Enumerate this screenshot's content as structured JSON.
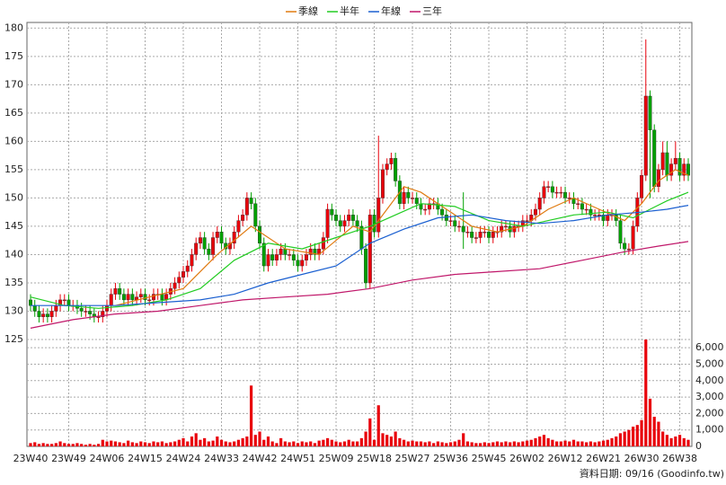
{
  "chart_data": {
    "type": "candlestick",
    "categories": [
      "23W40",
      null,
      null,
      null,
      null,
      null,
      null,
      null,
      null,
      "23W49",
      null,
      null,
      null,
      null,
      null,
      null,
      null,
      null,
      "24W06",
      null,
      null,
      null,
      null,
      null,
      null,
      null,
      null,
      "24W15",
      null,
      null,
      null,
      null,
      null,
      null,
      null,
      null,
      "24W24",
      null,
      null,
      null,
      null,
      null,
      null,
      null,
      null,
      "24W33",
      null,
      null,
      null,
      null,
      null,
      null,
      null,
      null,
      "24W42",
      null,
      null,
      null,
      null,
      null,
      null,
      null,
      null,
      "24W51",
      null,
      null,
      null,
      null,
      null,
      null,
      null,
      null,
      "25W09",
      null,
      null,
      null,
      null,
      null,
      null,
      null,
      null,
      "25W18",
      null,
      null,
      null,
      null,
      null,
      null,
      null,
      null,
      "25W27",
      null,
      null,
      null,
      null,
      null,
      null,
      null,
      null,
      "25W36",
      null,
      null,
      null,
      null,
      null,
      null,
      null,
      null,
      "25W45",
      null,
      null,
      null,
      null,
      null,
      null,
      null,
      null,
      "26W02",
      null,
      null,
      null,
      null,
      null,
      null,
      null,
      null,
      "26W12",
      null,
      null,
      null,
      null,
      null,
      null,
      null,
      null,
      "26W21",
      null,
      null,
      null,
      null,
      null,
      null,
      null,
      null,
      "26W30",
      null,
      null,
      null,
      null,
      null,
      null,
      null,
      null,
      "26W38",
      null,
      null
    ],
    "open": [
      132,
      131,
      130,
      129,
      129.5,
      129,
      130,
      131,
      132,
      132,
      131,
      131,
      130.5,
      130,
      130,
      129.5,
      129,
      129,
      130,
      131,
      133,
      134,
      133,
      132,
      133,
      132,
      132.5,
      133,
      132,
      132,
      133,
      133,
      132,
      133,
      134,
      135,
      136,
      137,
      138,
      140,
      142,
      143,
      141,
      140,
      143,
      144,
      142,
      141,
      142,
      144,
      146,
      147,
      150,
      149,
      145,
      142,
      138,
      140,
      139,
      140,
      141,
      140,
      140,
      139,
      138,
      139,
      140,
      141,
      140,
      141,
      143,
      148,
      147,
      146,
      145,
      146,
      147,
      146,
      145,
      141,
      135,
      147,
      144,
      150,
      155,
      156,
      157,
      153,
      149,
      151,
      150,
      150,
      149,
      148,
      148,
      149,
      149,
      148,
      147,
      146,
      146,
      145,
      145,
      144,
      144,
      143,
      143,
      144,
      144,
      143,
      144,
      144,
      145,
      145,
      144,
      145,
      145,
      146,
      146,
      147,
      148,
      150,
      152,
      152,
      151,
      151,
      151,
      150,
      150,
      149,
      149,
      148,
      148,
      147,
      147,
      147,
      146,
      147,
      147,
      146,
      142,
      141,
      141,
      145,
      150,
      154,
      168,
      162,
      152,
      155,
      158,
      154,
      156,
      157,
      154,
      156
    ],
    "high": [
      133,
      132,
      131,
      130.5,
      130.5,
      131,
      132,
      133,
      133,
      133,
      132,
      132,
      131.5,
      131,
      131,
      130.5,
      130,
      131,
      132,
      134,
      135,
      135,
      134,
      134,
      134,
      133.5,
      134,
      134,
      133,
      134,
      134,
      134,
      134,
      135,
      136,
      137,
      138,
      139,
      141,
      143,
      144,
      144,
      142,
      144,
      145,
      145,
      143,
      143,
      145,
      147,
      148,
      151,
      151,
      150,
      146,
      143,
      141,
      141,
      141,
      142,
      142,
      141,
      141,
      140,
      140,
      141,
      142,
      142,
      142,
      144,
      149,
      149,
      148,
      147,
      147,
      148,
      148,
      147,
      146,
      142,
      148,
      148,
      161,
      156,
      157,
      158,
      158,
      154,
      152,
      152,
      151,
      151,
      150,
      149,
      150,
      150,
      150,
      149,
      148,
      147,
      147,
      146,
      151,
      145,
      145,
      144,
      145,
      145,
      145,
      145,
      145,
      146,
      146,
      146,
      146,
      146,
      147,
      147,
      148,
      149,
      151,
      153,
      153,
      153,
      152,
      152,
      152,
      151,
      151,
      150,
      150,
      149,
      149,
      148,
      148,
      148,
      148,
      148,
      148,
      147,
      143,
      142,
      146,
      151,
      155,
      178,
      169,
      163,
      156,
      160,
      160,
      157,
      160,
      158,
      157,
      157
    ],
    "low": [
      130,
      129,
      128,
      128,
      128,
      128,
      129,
      130,
      131,
      130,
      130,
      129.5,
      129,
      129,
      128.5,
      128,
      128,
      128,
      129,
      130,
      132,
      132,
      131,
      131,
      131,
      131,
      131.5,
      131,
      131,
      131,
      132,
      131,
      131,
      132,
      133,
      134,
      135,
      136,
      137,
      139,
      141,
      140,
      139,
      139,
      142,
      141,
      140,
      140,
      141,
      143,
      145,
      146,
      148,
      144,
      141,
      137,
      137,
      138,
      138,
      139,
      139,
      139,
      138,
      137,
      137,
      138,
      139,
      139,
      139,
      140,
      142,
      146,
      145,
      144,
      144,
      145,
      145,
      144,
      140,
      134,
      134,
      143,
      143,
      149,
      154,
      155,
      152,
      148,
      148,
      149,
      149,
      148,
      147,
      147,
      147,
      148,
      147,
      146,
      145,
      145,
      144,
      144,
      141,
      143,
      142,
      142,
      142,
      143,
      142,
      142,
      143,
      143,
      144,
      143,
      143,
      144,
      144,
      145,
      145,
      146,
      147,
      149,
      151,
      150,
      150,
      150,
      149,
      149,
      148,
      148,
      147,
      147,
      146,
      146,
      146,
      145,
      145,
      146,
      145,
      141,
      140,
      140,
      140,
      144,
      149,
      153,
      150,
      151,
      151,
      154,
      153,
      153,
      155,
      153,
      153,
      153
    ],
    "close": [
      131,
      130,
      129,
      129.5,
      129,
      130,
      131,
      132,
      132,
      131,
      131,
      130.5,
      130,
      130,
      129.5,
      129,
      129,
      130,
      131,
      133,
      134,
      133,
      132,
      133,
      132,
      132.5,
      133,
      132,
      132,
      133,
      133,
      132,
      133,
      134,
      135,
      136,
      137,
      138,
      140,
      142,
      143,
      141,
      140,
      143,
      144,
      142,
      141,
      142,
      144,
      146,
      147,
      150,
      149,
      145,
      142,
      138,
      140,
      139,
      140,
      141,
      140,
      140,
      139,
      138,
      139,
      140,
      141,
      140,
      141,
      143,
      148,
      147,
      146,
      145,
      146,
      147,
      146,
      145,
      141,
      135,
      147,
      144,
      150,
      155,
      156,
      157,
      153,
      149,
      151,
      150,
      150,
      149,
      148,
      148,
      149,
      149,
      148,
      147,
      146,
      146,
      145,
      145,
      144,
      144,
      143,
      143,
      144,
      144,
      143,
      144,
      144,
      145,
      145,
      144,
      145,
      145,
      146,
      146,
      147,
      148,
      150,
      152,
      152,
      151,
      151,
      151,
      150,
      150,
      149,
      149,
      148,
      148,
      147,
      147,
      147,
      146,
      147,
      147,
      146,
      142,
      141,
      141,
      145,
      150,
      154,
      168,
      162,
      152,
      155,
      158,
      154,
      156,
      157,
      154,
      156,
      154
    ],
    "up_color": "#e8000b",
    "down_color": "#00a000",
    "ylim": [
      125,
      181
    ],
    "yticks": [
      125,
      130,
      135,
      140,
      145,
      150,
      155,
      160,
      165,
      170,
      175,
      180
    ],
    "grid": true,
    "series": [
      {
        "name": "季線",
        "color": "#e07a10",
        "x": [
          20,
          28,
          36,
          44,
          52,
          60,
          68,
          76,
          80,
          84,
          88,
          92,
          96,
          100,
          104,
          110,
          116,
          122,
          128,
          134,
          140,
          144,
          148,
          152,
          155
        ],
        "values": [
          131,
          132.5,
          134,
          140,
          145,
          141,
          140,
          145,
          144,
          148,
          152,
          151,
          149,
          147,
          145,
          144,
          145,
          148,
          150,
          148,
          146,
          149,
          153,
          155,
          154
        ]
      },
      {
        "name": "半年",
        "color": "#22cc22",
        "x": [
          0,
          8,
          16,
          24,
          32,
          40,
          48,
          56,
          64,
          72,
          80,
          86,
          92,
          100,
          108,
          116,
          122,
          128,
          136,
          142,
          146,
          150,
          155
        ],
        "values": [
          132.5,
          131,
          130.5,
          131,
          132,
          134,
          139,
          142,
          141,
          143,
          145,
          147,
          149,
          148.5,
          146,
          145,
          146,
          147,
          147.5,
          146.5,
          148,
          149.5,
          151
        ]
      },
      {
        "name": "年線",
        "color": "#1a5fd0",
        "x": [
          0,
          10,
          20,
          30,
          40,
          48,
          56,
          64,
          72,
          80,
          88,
          96,
          104,
          112,
          120,
          128,
          136,
          144,
          150,
          155
        ],
        "values": [
          131,
          131,
          131,
          131.5,
          132,
          133,
          135,
          136.5,
          138,
          142,
          144.5,
          146.5,
          147,
          146,
          145.5,
          146,
          147,
          147.5,
          148,
          148.7
        ]
      },
      {
        "name": "三年",
        "color": "#c0176a",
        "x": [
          0,
          10,
          20,
          30,
          40,
          50,
          60,
          70,
          80,
          90,
          100,
          110,
          120,
          130,
          140,
          148,
          155
        ],
        "values": [
          127,
          128.5,
          129.5,
          130,
          131,
          132,
          132.5,
          133,
          134,
          135.5,
          136.5,
          137,
          137.5,
          139,
          140.5,
          141.5,
          142.3
        ]
      }
    ],
    "volume": {
      "color": "#e8000b",
      "ylim": [
        0,
        6500
      ],
      "yticks": [
        0,
        {
          "value": 1000,
          "label": "1,000"
        },
        {
          "value": 2000,
          "label": "2,000"
        },
        {
          "value": 3000,
          "label": "3,000"
        },
        {
          "value": 4000,
          "label": "4,000"
        },
        {
          "value": 5000,
          "label": "5,000"
        },
        {
          "value": 6000,
          "label": "6,000"
        }
      ],
      "values": [
        200,
        250,
        150,
        200,
        150,
        150,
        200,
        300,
        200,
        150,
        150,
        200,
        150,
        100,
        150,
        100,
        150,
        400,
        300,
        350,
        300,
        250,
        200,
        350,
        250,
        200,
        300,
        250,
        200,
        300,
        250,
        300,
        200,
        250,
        300,
        400,
        500,
        300,
        600,
        800,
        400,
        500,
        300,
        350,
        600,
        400,
        300,
        250,
        300,
        400,
        500,
        600,
        3700,
        700,
        900,
        400,
        600,
        300,
        200,
        500,
        300,
        250,
        300,
        200,
        300,
        250,
        300,
        200,
        350,
        400,
        500,
        400,
        300,
        250,
        300,
        400,
        300,
        300,
        500,
        900,
        1700,
        400,
        2500,
        800,
        700,
        600,
        900,
        500,
        400,
        300,
        350,
        300,
        300,
        250,
        300,
        200,
        300,
        250,
        200,
        250,
        300,
        400,
        800,
        300,
        250,
        200,
        200,
        250,
        200,
        250,
        300,
        250,
        300,
        250,
        300,
        250,
        300,
        350,
        400,
        500,
        600,
        700,
        500,
        400,
        300,
        300,
        350,
        300,
        400,
        300,
        300,
        250,
        300,
        250,
        300,
        350,
        400,
        500,
        600,
        800,
        900,
        1000,
        1200,
        1300,
        1600,
        6500,
        2900,
        1800,
        1500,
        900,
        700,
        500,
        600,
        700,
        500,
        400
      ]
    },
    "source": "資料日期: 09/16  (Goodinfo.tw)"
  }
}
